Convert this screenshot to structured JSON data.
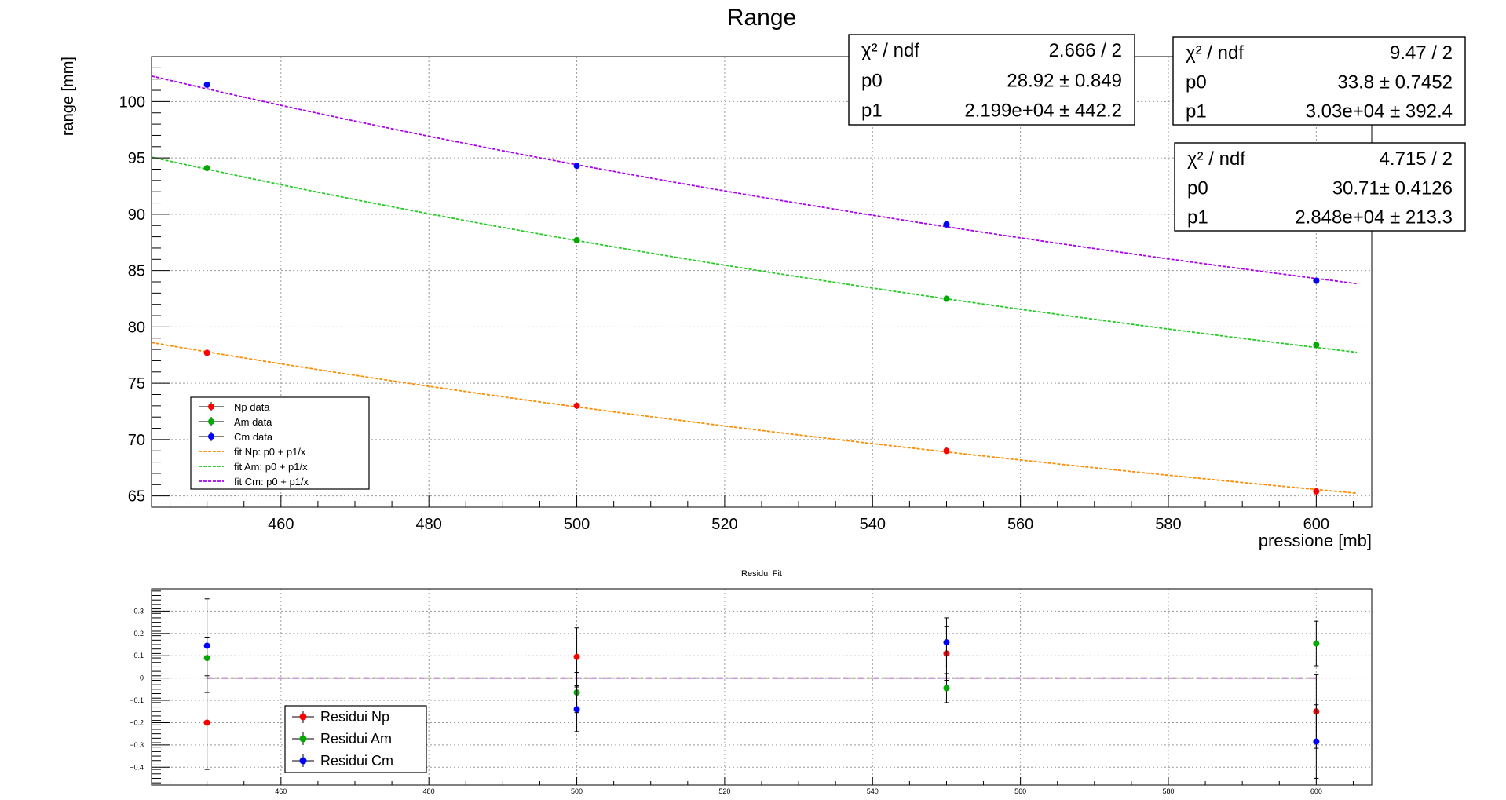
{
  "main_chart": {
    "title": "Range",
    "xlabel": "pressione [mb]",
    "ylabel": "range [mm]",
    "xticks": [
      "460",
      "480",
      "500",
      "520",
      "540",
      "560",
      "580",
      "600"
    ],
    "yticks": [
      "65",
      "70",
      "75",
      "80",
      "85",
      "90",
      "95",
      "100"
    ],
    "legend": {
      "entries": [
        {
          "label": "Np data"
        },
        {
          "label": "Am data"
        },
        {
          "label": "Cm data"
        },
        {
          "label": "fit Np: p0 + p1/x"
        },
        {
          "label": "fit Am: p0 + p1/x"
        },
        {
          "label": "fit Cm: p0 + p1/x"
        }
      ]
    },
    "stat_boxes": [
      {
        "rows": [
          {
            "name": "χ² / ndf",
            "value": "2.666 / 2"
          },
          {
            "name": "p0",
            "value": "28.92 ± 0.849"
          },
          {
            "name": "p1",
            "value": "2.199e+04 ± 442.2"
          }
        ]
      },
      {
        "rows": [
          {
            "name": "χ² / ndf",
            "value": "9.47 / 2"
          },
          {
            "name": "p0",
            "value": "33.8 ± 0.7452"
          },
          {
            "name": "p1",
            "value": "3.03e+04 ± 392.4"
          }
        ]
      },
      {
        "rows": [
          {
            "name": "χ² / ndf",
            "value": "4.715 / 2"
          },
          {
            "name": "p0",
            "value": "30.71± 0.4126"
          },
          {
            "name": "p1",
            "value": "2.848e+04 ± 213.3"
          }
        ]
      }
    ]
  },
  "residual_chart": {
    "title": "Residui Fit",
    "xticks": [
      "460",
      "480",
      "500",
      "520",
      "540",
      "560",
      "580",
      "600"
    ],
    "yticks": [
      "0.3",
      "0.2",
      "0.1",
      "0",
      "−0.1",
      "−0.2",
      "−0.3",
      "−0.4"
    ],
    "legend": {
      "entries": [
        {
          "label": "Residui Np"
        },
        {
          "label": "Residui Am"
        },
        {
          "label": "Residui Cm"
        }
      ]
    }
  },
  "chart_data": [
    {
      "type": "scatter",
      "title": "Range",
      "xlabel": "pressione [mb]",
      "ylabel": "range [mm]",
      "xlim": [
        442.5,
        607.5
      ],
      "ylim": [
        64,
        104
      ],
      "grid": true,
      "legend_position": "bottom-left",
      "series": [
        {
          "name": "Np data",
          "color": "#ff0000",
          "x": [
            450,
            500,
            550,
            600
          ],
          "y": [
            77.7,
            73.0,
            69.0,
            65.4
          ]
        },
        {
          "name": "Am data",
          "color": "#00aa00",
          "x": [
            450,
            500,
            550,
            600
          ],
          "y": [
            94.1,
            87.7,
            82.5,
            78.4
          ]
        },
        {
          "name": "Cm data",
          "color": "#0000ff",
          "x": [
            450,
            500,
            550,
            600
          ],
          "y": [
            101.5,
            94.3,
            89.1,
            84.1
          ]
        }
      ],
      "fits": [
        {
          "name": "fit Np: p0 + p1/x",
          "color": "#ff8c00",
          "p0": 28.92,
          "p1": 21990
        },
        {
          "name": "fit Am: p0 + p1/x",
          "color": "#22cc22",
          "p0": 30.71,
          "p1": 28480
        },
        {
          "name": "fit Cm: p0 + p1/x",
          "color": "#aa00ee",
          "p0": 33.8,
          "p1": 30300
        }
      ]
    },
    {
      "type": "scatter",
      "title": "Residui Fit",
      "xlim": [
        442.5,
        607.5
      ],
      "ylim": [
        -0.48,
        0.4
      ],
      "grid": true,
      "legend_position": "bottom-left",
      "series": [
        {
          "name": "Residui Np",
          "color": "#ff0000",
          "x": [
            450,
            500,
            550,
            600
          ],
          "y": [
            -0.2,
            0.095,
            0.11,
            -0.15
          ],
          "err": [
            0.21,
            0.13,
            0.12,
            0.165
          ]
        },
        {
          "name": "Residui Am",
          "color": "#00aa00",
          "x": [
            450,
            500,
            550,
            600
          ],
          "y": [
            0.09,
            -0.065,
            -0.045,
            0.155
          ],
          "err": [
            0.09,
            0.09,
            0.065,
            0.1
          ]
        },
        {
          "name": "Residui Cm",
          "color": "#0000ff",
          "x": [
            450,
            500,
            550,
            600
          ],
          "y": [
            0.145,
            -0.14,
            0.16,
            -0.285
          ],
          "err": [
            0.21,
            0.1,
            0.11,
            0.165
          ]
        }
      ]
    }
  ]
}
